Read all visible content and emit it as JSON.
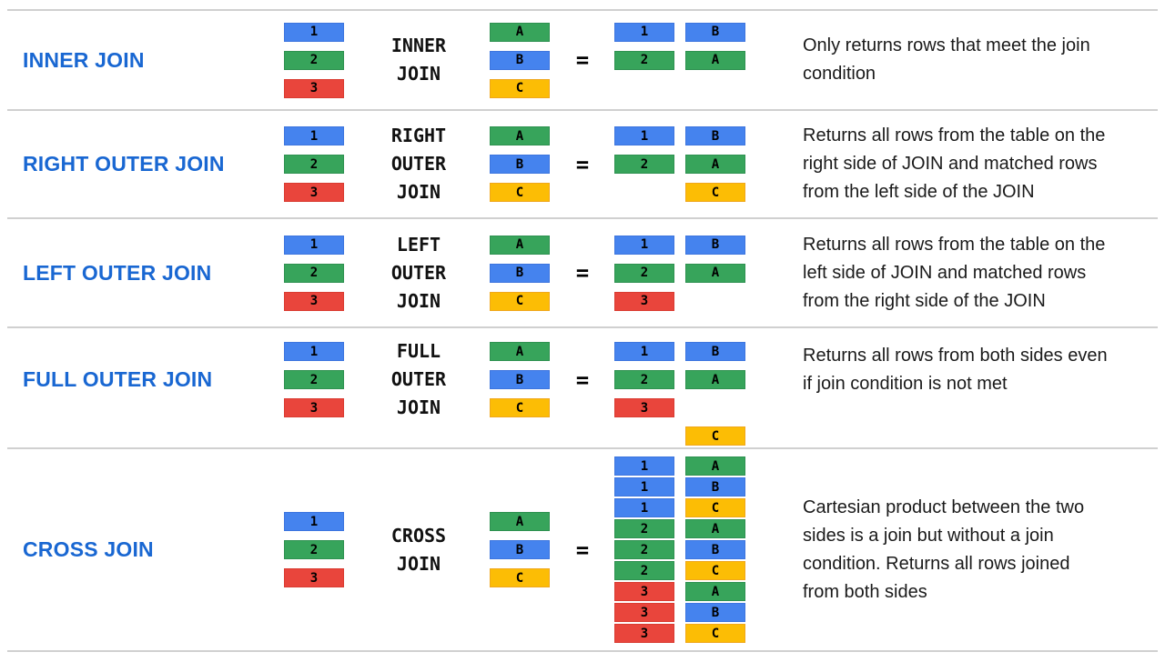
{
  "ui": {
    "heading_text_color": "#1967d2",
    "body_text_color": "#1a1a1a",
    "join_text_color": "#111111",
    "divider_color": "#d0d0d0",
    "background_color": "#ffffff"
  },
  "palette": {
    "blue": {
      "fill": "#4583ee",
      "border": "#3d75de"
    },
    "green": {
      "fill": "#37a45b",
      "border": "#2e9150"
    },
    "red": {
      "fill": "#e9453c",
      "border": "#d93b31"
    },
    "yellow": {
      "fill": "#fcbd05",
      "border": "#f0a71b"
    }
  },
  "value_colors": {
    "1": "blue",
    "2": "green",
    "3": "red",
    "A": "green",
    "B": "blue",
    "C": "yellow"
  },
  "left_table": [
    "1",
    "2",
    "3"
  ],
  "right_table": [
    "A",
    "B",
    "C"
  ],
  "equals_sign": "=",
  "rows": [
    {
      "id": "inner-join",
      "label": "INNER JOIN",
      "join_lines": [
        "INNER",
        "JOIN"
      ],
      "result": [
        [
          "1",
          "B"
        ],
        [
          "2",
          "A"
        ]
      ],
      "description_lines": [
        "Only returns rows that meet the join",
        "condition"
      ]
    },
    {
      "id": "right-outer-join",
      "label": "RIGHT OUTER JOIN",
      "join_lines": [
        "RIGHT",
        "OUTER",
        "JOIN"
      ],
      "result": [
        [
          "1",
          "B"
        ],
        [
          "2",
          "A"
        ],
        [
          null,
          "C"
        ]
      ],
      "description_lines": [
        "Returns all rows from the table on the",
        "right side of JOIN and matched rows",
        "from the left side of the JOIN"
      ]
    },
    {
      "id": "left-outer-join",
      "label": "LEFT OUTER JOIN",
      "join_lines": [
        "LEFT",
        "OUTER",
        "JOIN"
      ],
      "result": [
        [
          "1",
          "B"
        ],
        [
          "2",
          "A"
        ],
        [
          "3",
          null
        ]
      ],
      "description_lines": [
        "Returns all rows from the table on the",
        "left side of JOIN and matched rows",
        "from the right side of the JOIN"
      ]
    },
    {
      "id": "full-outer-join",
      "label": "FULL OUTER JOIN",
      "join_lines": [
        "FULL",
        "OUTER",
        "JOIN"
      ],
      "result": [
        [
          "1",
          "B"
        ],
        [
          "2",
          "A"
        ],
        [
          "3",
          null
        ],
        [
          null,
          "C"
        ]
      ],
      "description_lines": [
        "Returns all rows from both sides even",
        "if join condition is not met"
      ]
    },
    {
      "id": "cross-join",
      "label": "CROSS JOIN",
      "join_lines": [
        "CROSS",
        "JOIN"
      ],
      "result": [
        [
          "1",
          "A"
        ],
        [
          "1",
          "B"
        ],
        [
          "1",
          "C"
        ],
        [
          "2",
          "A"
        ],
        [
          "2",
          "B"
        ],
        [
          "2",
          "C"
        ],
        [
          "3",
          "A"
        ],
        [
          "3",
          "B"
        ],
        [
          "3",
          "C"
        ]
      ],
      "description_lines": [
        "Cartesian product between the two",
        "sides is a join but without a join",
        "condition. Returns all rows joined",
        "from both sides"
      ]
    }
  ]
}
